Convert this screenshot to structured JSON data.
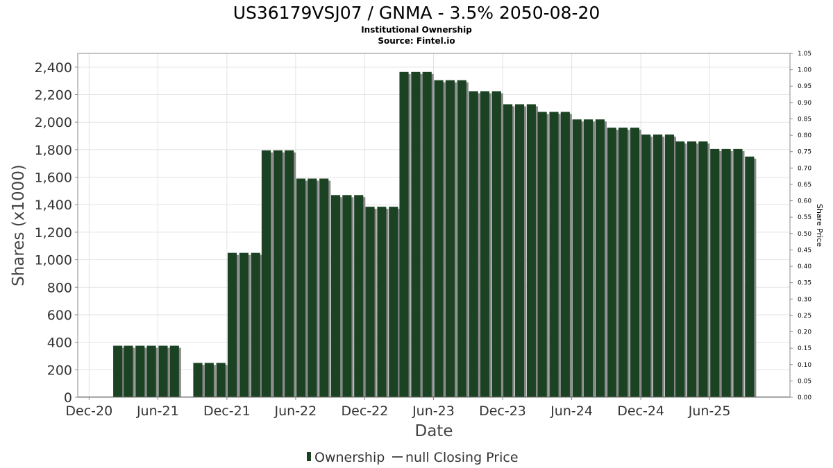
{
  "chart_data": {
    "type": "bar",
    "title": "US36179VSJ07 / GNMA - 3.5% 2050-08-20",
    "subtitle_lines": [
      "Institutional Ownership",
      "Source: Fintel.io"
    ],
    "xlabel": "Date",
    "ylabel": "Shares (x1000)",
    "y2label": "Share Price",
    "ylim": [
      0,
      2500
    ],
    "y2lim": [
      0,
      1.05
    ],
    "yticks": [
      "0",
      "200",
      "400",
      "600",
      "800",
      "1,000",
      "1,200",
      "1,400",
      "1,600",
      "1,800",
      "2,000",
      "2,200",
      "2,400"
    ],
    "y2ticks": [
      "0.00",
      "0.05",
      "0.10",
      "0.15",
      "0.20",
      "0.25",
      "0.30",
      "0.35",
      "0.40",
      "0.45",
      "0.50",
      "0.55",
      "0.60",
      "0.65",
      "0.70",
      "0.75",
      "0.80",
      "0.85",
      "0.90",
      "0.95",
      "1.00",
      "1.05"
    ],
    "xticks": [
      {
        "label": "Dec-20",
        "date": "2020-12-01"
      },
      {
        "label": "Jun-21",
        "date": "2021-06-01"
      },
      {
        "label": "Dec-21",
        "date": "2021-12-01"
      },
      {
        "label": "Jun-22",
        "date": "2022-06-01"
      },
      {
        "label": "Dec-22",
        "date": "2022-12-01"
      },
      {
        "label": "Jun-23",
        "date": "2023-06-01"
      },
      {
        "label": "Dec-23",
        "date": "2023-12-01"
      },
      {
        "label": "Jun-24",
        "date": "2024-06-01"
      },
      {
        "label": "Dec-24",
        "date": "2024-12-01"
      },
      {
        "label": "Jun-25",
        "date": "2025-06-01"
      }
    ],
    "xlim": [
      "2020-11-01",
      "2025-12-31"
    ],
    "grid": true,
    "legend_position": "bottom",
    "colors": {
      "bar": "#1a4223",
      "bar_shadow": "#8a8a8a",
      "grid": "#e2e2e2"
    },
    "series": [
      {
        "name": "Ownership",
        "points": [
          {
            "x": "2021-01-15",
            "y": 0
          },
          {
            "x": "2021-02-15",
            "y": 375
          },
          {
            "x": "2021-03-15",
            "y": 375
          },
          {
            "x": "2021-04-15",
            "y": 375
          },
          {
            "x": "2021-05-15",
            "y": 375
          },
          {
            "x": "2021-06-15",
            "y": 375
          },
          {
            "x": "2021-07-15",
            "y": 375
          },
          {
            "x": "2021-08-15",
            "y": 0
          },
          {
            "x": "2021-09-15",
            "y": 250
          },
          {
            "x": "2021-10-15",
            "y": 250
          },
          {
            "x": "2021-11-15",
            "y": 250
          },
          {
            "x": "2021-12-15",
            "y": 1050
          },
          {
            "x": "2022-01-15",
            "y": 1050
          },
          {
            "x": "2022-02-15",
            "y": 1050
          },
          {
            "x": "2022-03-15",
            "y": 1795
          },
          {
            "x": "2022-04-15",
            "y": 1795
          },
          {
            "x": "2022-05-15",
            "y": 1795
          },
          {
            "x": "2022-06-15",
            "y": 1590
          },
          {
            "x": "2022-07-15",
            "y": 1590
          },
          {
            "x": "2022-08-15",
            "y": 1590
          },
          {
            "x": "2022-09-15",
            "y": 1470
          },
          {
            "x": "2022-10-15",
            "y": 1470
          },
          {
            "x": "2022-11-15",
            "y": 1470
          },
          {
            "x": "2022-12-15",
            "y": 1385
          },
          {
            "x": "2023-01-15",
            "y": 1385
          },
          {
            "x": "2023-02-15",
            "y": 1385
          },
          {
            "x": "2023-03-15",
            "y": 2365
          },
          {
            "x": "2023-04-15",
            "y": 2365
          },
          {
            "x": "2023-05-15",
            "y": 2365
          },
          {
            "x": "2023-06-15",
            "y": 2305
          },
          {
            "x": "2023-07-15",
            "y": 2305
          },
          {
            "x": "2023-08-15",
            "y": 2305
          },
          {
            "x": "2023-09-15",
            "y": 2225
          },
          {
            "x": "2023-10-15",
            "y": 2225
          },
          {
            "x": "2023-11-15",
            "y": 2225
          },
          {
            "x": "2023-12-15",
            "y": 2130
          },
          {
            "x": "2024-01-15",
            "y": 2130
          },
          {
            "x": "2024-02-15",
            "y": 2130
          },
          {
            "x": "2024-03-15",
            "y": 2075
          },
          {
            "x": "2024-04-15",
            "y": 2075
          },
          {
            "x": "2024-05-15",
            "y": 2075
          },
          {
            "x": "2024-06-15",
            "y": 2020
          },
          {
            "x": "2024-07-15",
            "y": 2020
          },
          {
            "x": "2024-08-15",
            "y": 2020
          },
          {
            "x": "2024-09-15",
            "y": 1960
          },
          {
            "x": "2024-10-15",
            "y": 1960
          },
          {
            "x": "2024-11-15",
            "y": 1960
          },
          {
            "x": "2024-12-15",
            "y": 1910
          },
          {
            "x": "2025-01-15",
            "y": 1910
          },
          {
            "x": "2025-02-15",
            "y": 1910
          },
          {
            "x": "2025-03-15",
            "y": 1860
          },
          {
            "x": "2025-04-15",
            "y": 1860
          },
          {
            "x": "2025-05-15",
            "y": 1860
          },
          {
            "x": "2025-06-15",
            "y": 1805
          },
          {
            "x": "2025-07-15",
            "y": 1805
          },
          {
            "x": "2025-08-15",
            "y": 1805
          },
          {
            "x": "2025-09-15",
            "y": 1750
          }
        ]
      }
    ],
    "legend": [
      {
        "label": "Ownership",
        "marker": "bar"
      },
      {
        "label": "null Closing Price",
        "marker": "line"
      }
    ]
  }
}
